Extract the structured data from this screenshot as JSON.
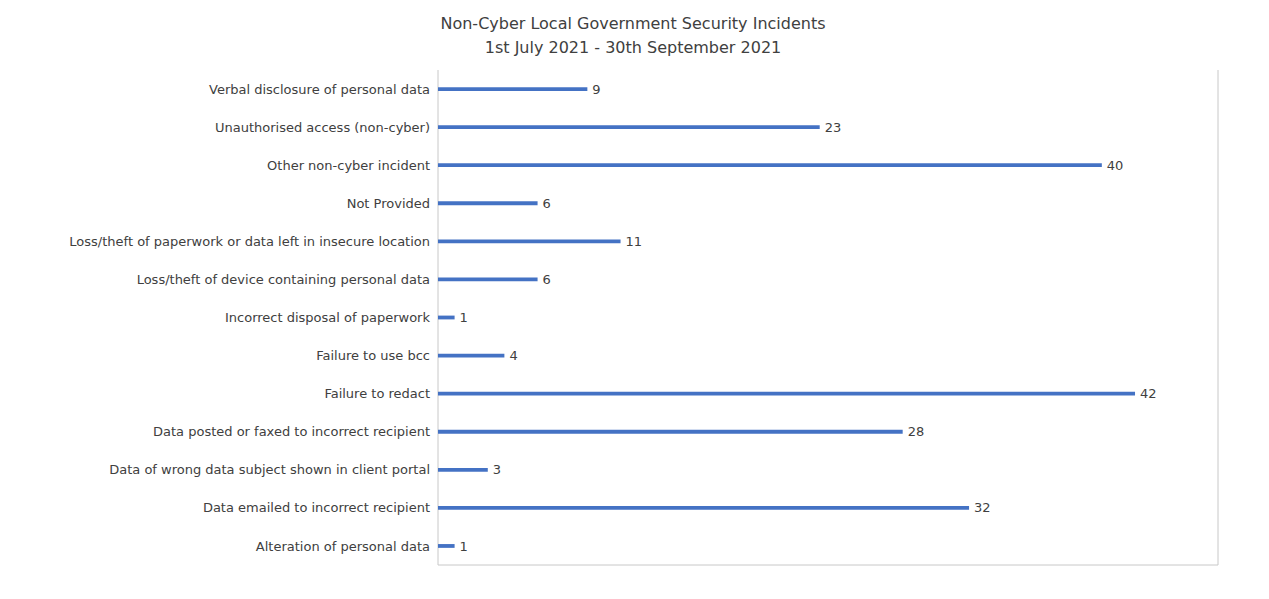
{
  "chart_data": {
    "type": "bar",
    "title": "Non-Cyber Local Government Security Incidents",
    "subtitle": "1st July 2021 - 30th September 2021",
    "categories": [
      "Alteration of personal data",
      "Data emailed to incorrect recipient",
      "Data of wrong data subject shown in client portal",
      "Data posted or faxed to incorrect recipient",
      "Failure to redact",
      "Failure to use bcc",
      "Incorrect disposal of paperwork",
      "Loss/theft of device containing personal data",
      "Loss/theft of paperwork or data left in insecure location",
      "Not Provided",
      "Other non-cyber incident",
      "Unauthorised access (non-cyber)",
      "Verbal disclosure of personal data"
    ],
    "values": [
      1,
      32,
      3,
      28,
      42,
      4,
      1,
      6,
      11,
      6,
      40,
      23,
      9
    ],
    "color": "#4472C4",
    "orientation": "horizontal",
    "xlim": [
      0,
      47
    ],
    "xticks": [
      0,
      5,
      10,
      15,
      20,
      25,
      30,
      35,
      40,
      45
    ],
    "grid": true,
    "data_labels": true,
    "tick_labels": "y"
  }
}
